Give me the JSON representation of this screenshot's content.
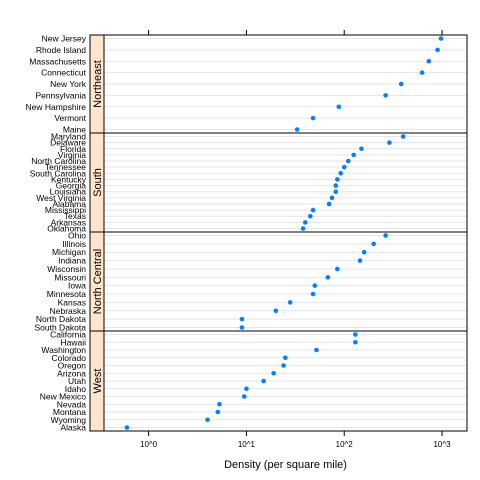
{
  "chart_data": {
    "type": "scatter",
    "xlabel": "Density (per square mile)",
    "x_scale": "log10",
    "xlim": [
      0.35,
      1800
    ],
    "x_ticks": [
      {
        "value": 1,
        "label": "10^0"
      },
      {
        "value": 10,
        "label": "10^1"
      },
      {
        "value": 100,
        "label": "10^2"
      },
      {
        "value": 1000,
        "label": "10^3"
      }
    ],
    "point_color": "#0080ff",
    "strip_color": "#ffe5cc",
    "panels": [
      {
        "name": "Northeast",
        "points": [
          {
            "state": "New Jersey",
            "density": 975
          },
          {
            "state": "Rhode Island",
            "density": 900
          },
          {
            "state": "Massachusetts",
            "density": 733
          },
          {
            "state": "Connecticut",
            "density": 625
          },
          {
            "state": "New York",
            "density": 382
          },
          {
            "state": "Pennsylvania",
            "density": 265
          },
          {
            "state": "New Hampshire",
            "density": 88
          },
          {
            "state": "Vermont",
            "density": 48
          },
          {
            "state": "Maine",
            "density": 33
          }
        ]
      },
      {
        "name": "South",
        "points": [
          {
            "state": "Maryland",
            "density": 400
          },
          {
            "state": "Delaware",
            "density": 290
          },
          {
            "state": "Florida",
            "density": 150
          },
          {
            "state": "Virginia",
            "density": 125
          },
          {
            "state": "North Carolina",
            "density": 110
          },
          {
            "state": "Tennessee",
            "density": 100
          },
          {
            "state": "South Carolina",
            "density": 92
          },
          {
            "state": "Kentucky",
            "density": 85
          },
          {
            "state": "Georgia",
            "density": 82
          },
          {
            "state": "Louisiana",
            "density": 82
          },
          {
            "state": "West Virginia",
            "density": 75
          },
          {
            "state": "Alabama",
            "density": 70
          },
          {
            "state": "Mississippi",
            "density": 48
          },
          {
            "state": "Texas",
            "density": 45
          },
          {
            "state": "Arkansas",
            "density": 40
          },
          {
            "state": "Oklahoma",
            "density": 38
          }
        ]
      },
      {
        "name": "North Central",
        "points": [
          {
            "state": "Ohio",
            "density": 265
          },
          {
            "state": "Illinois",
            "density": 200
          },
          {
            "state": "Michigan",
            "density": 160
          },
          {
            "state": "Indiana",
            "density": 145
          },
          {
            "state": "Wisconsin",
            "density": 85
          },
          {
            "state": "Missouri",
            "density": 68
          },
          {
            "state": "Iowa",
            "density": 50
          },
          {
            "state": "Minnesota",
            "density": 48
          },
          {
            "state": "Kansas",
            "density": 28
          },
          {
            "state": "Nebraska",
            "density": 20
          },
          {
            "state": "North Dakota",
            "density": 9
          },
          {
            "state": "South Dakota",
            "density": 9
          }
        ]
      },
      {
        "name": "West",
        "points": [
          {
            "state": "California",
            "density": 130
          },
          {
            "state": "Hawaii",
            "density": 130
          },
          {
            "state": "Washington",
            "density": 52
          },
          {
            "state": "Colorado",
            "density": 25
          },
          {
            "state": "Oregon",
            "density": 24
          },
          {
            "state": "Arizona",
            "density": 19
          },
          {
            "state": "Utah",
            "density": 15
          },
          {
            "state": "Idaho",
            "density": 10
          },
          {
            "state": "New Mexico",
            "density": 9.5
          },
          {
            "state": "Nevada",
            "density": 5.3
          },
          {
            "state": "Montana",
            "density": 5.1
          },
          {
            "state": "Wyoming",
            "density": 4
          },
          {
            "state": "Alaska",
            "density": 0.6
          }
        ]
      }
    ]
  }
}
